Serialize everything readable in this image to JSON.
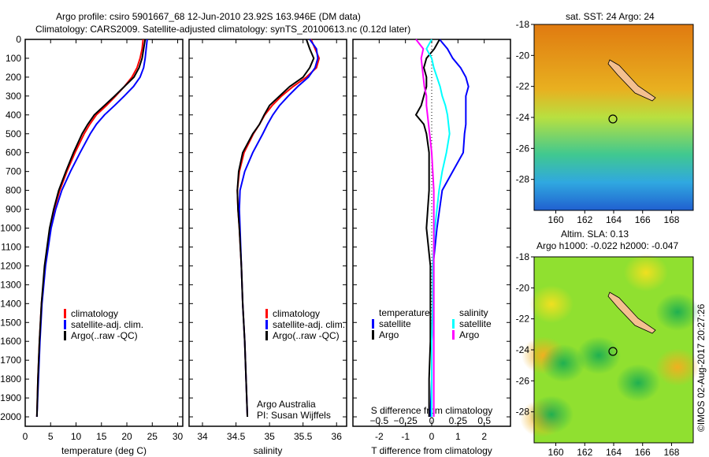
{
  "title_line1": "Argo profile: csiro 5901667_68 12-Jun-2010 23.92S 163.946E (DM data)",
  "title_line2": "Climatology: CARS2009. Satellite-adjusted climatology: synTS_20100613.nc (0.12d later)",
  "footer_credit": "©IMOS 02-Aug-2017 20:27:26",
  "colors": {
    "climatology": "#ff0000",
    "satellite": "#0000ff",
    "argo": "#000000",
    "s_satellite": "#00ffff",
    "s_argo": "#ff00ff"
  },
  "chart_data": [
    {
      "type": "line",
      "id": "temperature",
      "xlabel": "temperature (deg C)",
      "ylabel": "",
      "xlim": [
        0,
        31
      ],
      "ylim": [
        2050,
        0
      ],
      "xticks": [
        0,
        5,
        10,
        15,
        20,
        25,
        30
      ],
      "yticks": [
        0,
        100,
        200,
        300,
        400,
        500,
        600,
        700,
        800,
        900,
        1000,
        1100,
        1200,
        1300,
        1400,
        1500,
        1600,
        1700,
        1800,
        1900,
        2000
      ],
      "legend": [
        "climatology",
        "satellite-adj. clim.",
        "Argo(..raw -QC)"
      ],
      "depth": [
        0,
        50,
        100,
        150,
        200,
        250,
        300,
        350,
        400,
        450,
        500,
        600,
        700,
        800,
        900,
        1000,
        1200,
        1400,
        1600,
        1800,
        2000
      ],
      "series": [
        {
          "name": "climatology",
          "color": "#ff0000",
          "values": [
            23.2,
            23.0,
            22.6,
            22.0,
            21.0,
            19.5,
            17.8,
            16.0,
            14.0,
            12.7,
            11.6,
            9.8,
            8.2,
            6.8,
            5.7,
            4.9,
            3.9,
            3.2,
            2.8,
            2.5,
            2.3
          ]
        },
        {
          "name": "satellite-adj. clim.",
          "color": "#0000ff",
          "values": [
            24.0,
            23.8,
            23.6,
            23.3,
            22.6,
            21.3,
            19.5,
            17.6,
            15.6,
            14.0,
            12.8,
            10.8,
            8.9,
            7.2,
            6.0,
            5.1,
            4.0,
            3.3,
            2.9,
            2.6,
            2.3
          ]
        },
        {
          "name": "Argo(..raw -QC)",
          "color": "#000000",
          "values": [
            23.6,
            23.3,
            23.0,
            22.4,
            21.4,
            19.5,
            17.6,
            15.6,
            13.6,
            12.3,
            11.2,
            9.5,
            8.0,
            6.6,
            5.6,
            4.8,
            3.8,
            3.2,
            2.8,
            2.5,
            2.3
          ]
        }
      ]
    },
    {
      "type": "line",
      "id": "salinity",
      "xlabel": "salinity",
      "xlim": [
        33.8,
        36.15
      ],
      "ylim": [
        2050,
        0
      ],
      "xticks": [
        34,
        34.5,
        35,
        35.5,
        36
      ],
      "legend": [
        "climatology",
        "satellite-adj. clim.",
        "Argo(..raw -QC)"
      ],
      "annotation": [
        "Argo Australia",
        "PI: Susan Wijffels"
      ],
      "depth": [
        0,
        50,
        100,
        150,
        200,
        250,
        300,
        350,
        400,
        450,
        500,
        600,
        700,
        800,
        900,
        1000,
        1200,
        1400,
        1600,
        1800,
        2000
      ],
      "series": [
        {
          "name": "climatology",
          "color": "#ff0000",
          "values": [
            35.62,
            35.68,
            35.74,
            35.7,
            35.55,
            35.35,
            35.18,
            35.04,
            34.93,
            34.85,
            34.76,
            34.62,
            34.55,
            34.52,
            34.53,
            34.55,
            34.58,
            34.6,
            34.63,
            34.65,
            34.67
          ]
        },
        {
          "name": "satellite-adj. clim.",
          "color": "#0000ff",
          "values": [
            35.6,
            35.7,
            35.72,
            35.68,
            35.58,
            35.42,
            35.28,
            35.15,
            35.05,
            34.97,
            34.9,
            34.75,
            34.63,
            34.56,
            34.55,
            34.56,
            34.58,
            34.6,
            34.63,
            34.65,
            34.67
          ]
        },
        {
          "name": "Argo(..raw -QC)",
          "color": "#000000",
          "values": [
            35.55,
            35.6,
            35.66,
            35.6,
            35.5,
            35.3,
            35.15,
            35.0,
            34.92,
            34.85,
            34.75,
            34.6,
            34.54,
            34.52,
            34.53,
            34.55,
            34.58,
            34.6,
            34.63,
            34.65,
            34.67
          ]
        }
      ]
    },
    {
      "type": "line",
      "id": "difference",
      "xlabel": "T difference from climatology",
      "x2label": "S difference from climatology",
      "xlim": [
        -3,
        3
      ],
      "x2lim": [
        -0.75,
        0.75
      ],
      "ylim": [
        2050,
        0
      ],
      "xticks": [
        -2,
        -1,
        0,
        1,
        2
      ],
      "x2ticks": [
        -0.5,
        -0.25,
        0,
        0.25,
        0.5
      ],
      "legend_headers": [
        "temperature",
        "salinity"
      ],
      "legend": [
        "satellite",
        "Argo",
        "satellite",
        "Argo"
      ],
      "depth": [
        0,
        50,
        100,
        150,
        200,
        250,
        300,
        350,
        400,
        450,
        500,
        600,
        700,
        800,
        900,
        1000,
        1200,
        1400,
        1600,
        1800,
        2000
      ],
      "series": [
        {
          "name": "T satellite",
          "axis": "T",
          "color": "#0000ff",
          "values": [
            0.3,
            0.6,
            0.8,
            1.1,
            1.3,
            1.4,
            1.3,
            1.3,
            1.3,
            1.3,
            1.25,
            1.2,
            0.8,
            0.4,
            0.3,
            0.2,
            0.05,
            0.05,
            0,
            0,
            -0.05
          ]
        },
        {
          "name": "T Argo",
          "axis": "T",
          "color": "#000000",
          "values": [
            0.3,
            0.1,
            -0.2,
            -0.3,
            -0.2,
            -0.2,
            -0.3,
            -0.4,
            -0.6,
            -0.3,
            -0.2,
            -0.1,
            -0.1,
            -0.1,
            -0.15,
            -0.2,
            -0.05,
            -0.05,
            -0.05,
            -0.1,
            -0.1
          ]
        },
        {
          "name": "S satellite",
          "axis": "S",
          "color": "#00ffff",
          "values": [
            0,
            -0.05,
            0,
            0.02,
            0.05,
            0.08,
            0.1,
            0.13,
            0.15,
            0.16,
            0.17,
            0.14,
            0.1,
            0.07,
            0.05,
            0.03,
            0.01,
            0.01,
            0,
            0,
            0
          ]
        },
        {
          "name": "S Argo",
          "axis": "S",
          "color": "#ff00ff",
          "values": [
            -0.15,
            -0.08,
            -0.1,
            -0.09,
            -0.08,
            -0.07,
            -0.05,
            -0.05,
            -0.04,
            -0.03,
            -0.02,
            0,
            0.01,
            0.02,
            0.02,
            0.02,
            0.02,
            0.02,
            0.02,
            0.02,
            0.02
          ]
        }
      ]
    },
    {
      "type": "heatmap",
      "id": "sst_map",
      "title": "sat. SST: 24 Argo: 24",
      "xticks": [
        160,
        162,
        164,
        166,
        168
      ],
      "yticks": [
        -18,
        -20,
        -22,
        -24,
        -26,
        -28
      ],
      "xlim": [
        158.5,
        169.5
      ],
      "ylim": [
        -30,
        -18
      ],
      "marker": [
        163.946,
        -23.92
      ]
    },
    {
      "type": "heatmap",
      "id": "sla_map",
      "title": [
        "Altim. SLA: 0.13",
        "Argo h1000: -0.022 h2000: -0.047"
      ],
      "xticks": [
        160,
        162,
        164,
        166,
        168
      ],
      "yticks": [
        -18,
        -20,
        -22,
        -24,
        -26,
        -28
      ],
      "xlim": [
        158.5,
        169.5
      ],
      "ylim": [
        -30,
        -18
      ],
      "marker": [
        163.946,
        -23.92
      ]
    }
  ]
}
